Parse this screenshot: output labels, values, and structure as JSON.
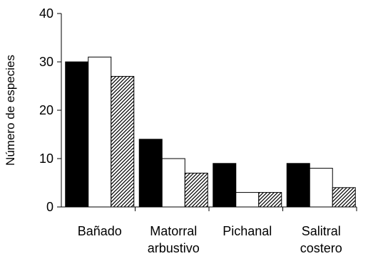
{
  "chart_data": {
    "type": "bar",
    "title": "",
    "xlabel": "",
    "ylabel": "Número de especies",
    "ylim": [
      0,
      40
    ],
    "yticks": [
      0,
      10,
      20,
      30,
      40
    ],
    "grid": false,
    "categories": [
      [
        "Bañado"
      ],
      [
        "Matorral",
        "arbustivo"
      ],
      [
        "Pichanal"
      ],
      [
        "Salitral",
        "costero"
      ]
    ],
    "series": [
      {
        "fill": "solid-black",
        "color": "#000000",
        "values": [
          30,
          14,
          9,
          9
        ]
      },
      {
        "fill": "white",
        "color": "#ffffff",
        "values": [
          31,
          10,
          3,
          8
        ]
      },
      {
        "fill": "diagonal-hatch",
        "color": "#000000",
        "values": [
          27,
          7,
          3,
          4
        ]
      }
    ]
  }
}
